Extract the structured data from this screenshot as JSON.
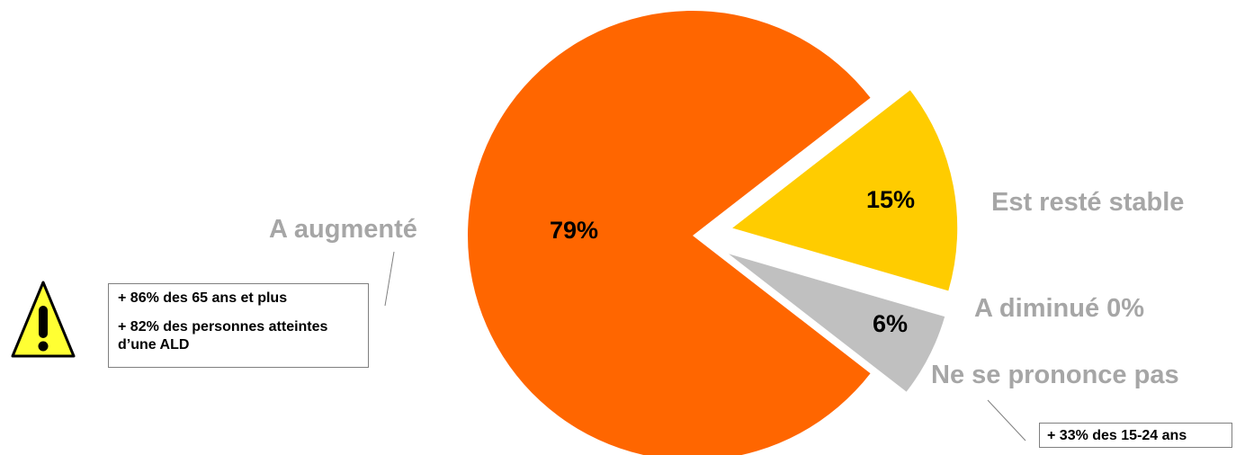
{
  "chart_data": {
    "type": "pie",
    "title": "",
    "slices": [
      {
        "label": "A augmenté",
        "value": 79,
        "value_label": "79%",
        "color": "#ff6600",
        "exploded": false
      },
      {
        "label": "Est resté stable",
        "value": 15,
        "value_label": "15%",
        "color": "#ffcc00",
        "exploded": true
      },
      {
        "label": "A diminué 0%",
        "value": 0,
        "value_label": "",
        "color": "#ffcc00",
        "exploded": true
      },
      {
        "label": "Ne se prononce pas",
        "value": 6,
        "value_label": "6%",
        "color": "#c0c0c0",
        "exploded": true
      }
    ],
    "annotations": {
      "augmente_notes": [
        "+ 86% des 65 ans et plus",
        "+ 82% des personnes atteintes d’une ALD"
      ],
      "ne_se_prononce_note": "+ 33% des 15-24 ans"
    },
    "icons": {
      "warning": "warning-triangle-icon"
    },
    "colors": {
      "label_gray": "#a6a6a6",
      "leader_line": "#808080"
    }
  }
}
